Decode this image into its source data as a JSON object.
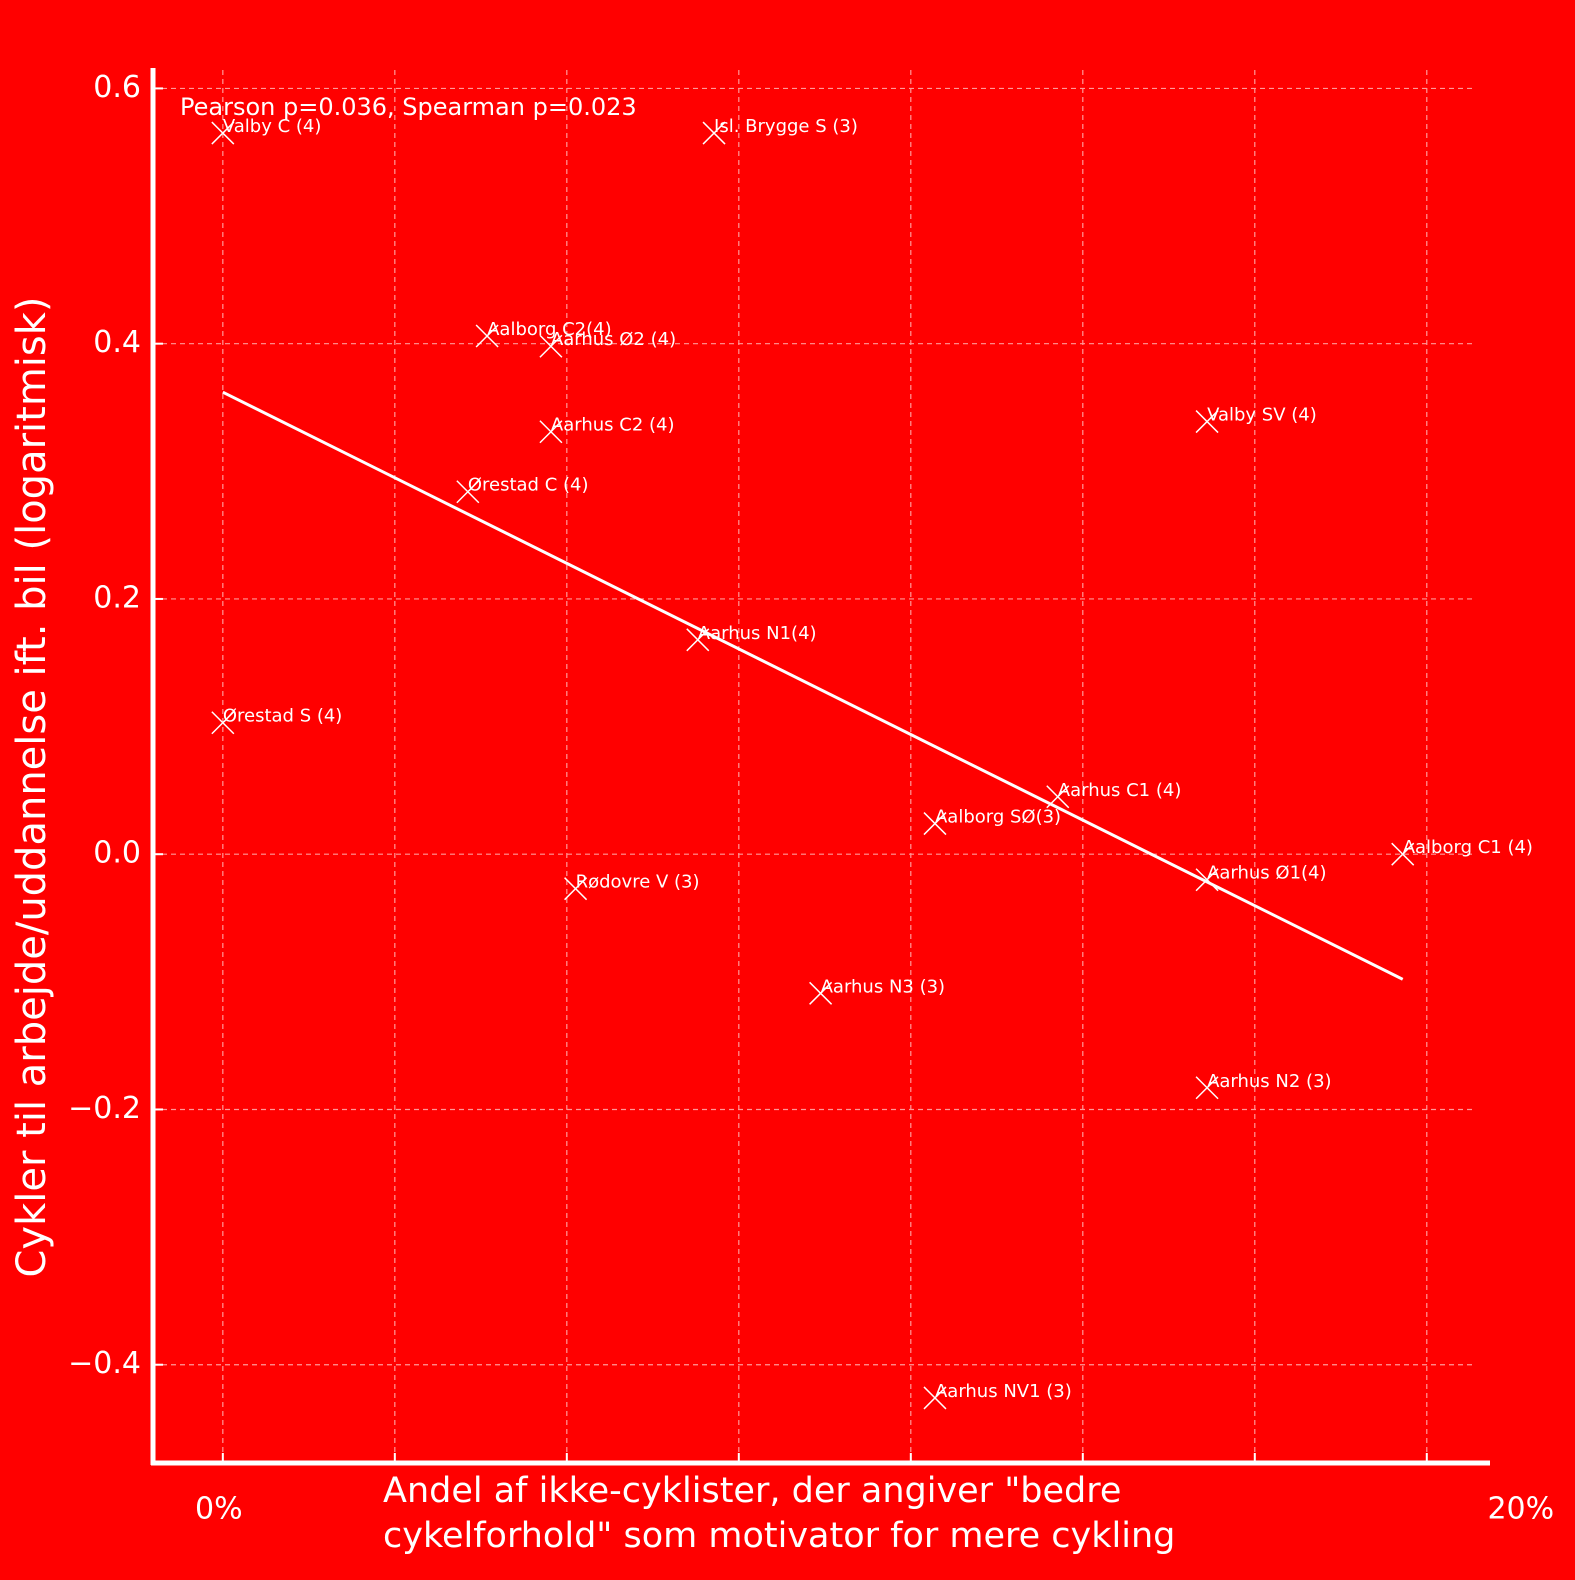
{
  "chart_data": {
    "type": "scatter",
    "annotation": "Pearson p=0.036, Spearman p=0.023",
    "xlabel": [
      "Andel af ikke-cyklister, der angiver \"bedre",
      "cykelforhold\" som motivator for mere cykling"
    ],
    "ylabel": "Cykler til arbejde/uddannelse ift. bil (logaritmisk)",
    "xlim": [
      -1.16,
      21.05
    ],
    "ylim": [
      -0.477,
      0.616
    ],
    "xticks": [
      {
        "value": 0,
        "label": "0%"
      },
      {
        "value": 20,
        "label": "20%"
      }
    ],
    "yticks": [
      {
        "value": 0.6,
        "label": "0.6"
      },
      {
        "value": 0.4,
        "label": "0.4"
      },
      {
        "value": 0.2,
        "label": "0.2"
      },
      {
        "value": 0.0,
        "label": "0.0"
      },
      {
        "value": -0.2,
        "label": "−0.2"
      },
      {
        "value": -0.4,
        "label": "−0.4"
      }
    ],
    "grid": true,
    "color": "#ffffff",
    "labels": [
      "Valby C (4)",
      "Isl. Brygge S (3)",
      "Aalborg C2(4)",
      "Aarhus Ø2 (4)",
      "Aarhus C2 (4)",
      "Valby SV (4)",
      "Ørestad C (4)",
      "Aarhus N1(4)",
      "Ørestad S (4)",
      "Aarhus C1 (4)",
      "Aalborg SØ(3)",
      "Aalborg C1 (4)",
      "Aarhus Ø1(4)",
      "Rødovre V (3)",
      "Aarhus N3 (3)",
      "Aarhus N2 (3)",
      "Aarhus NV1 (3)"
    ],
    "x": [
      0,
      8.16,
      4.39,
      5.45,
      5.45,
      16.35,
      4.07,
      7.89,
      0,
      13.87,
      11.83,
      19.6,
      16.35,
      5.86,
      9.93,
      16.35,
      11.83
    ],
    "values": [
      0.565,
      0.565,
      0.406,
      0.398,
      0.331,
      0.339,
      0.284,
      0.168,
      0.103,
      0.045,
      0.024,
      0.0,
      -0.02,
      -0.027,
      -0.109,
      -0.183,
      -0.426
    ],
    "trend": {
      "x": [
        0,
        19.6
      ],
      "values": [
        0.362,
        -0.098
      ]
    }
  }
}
